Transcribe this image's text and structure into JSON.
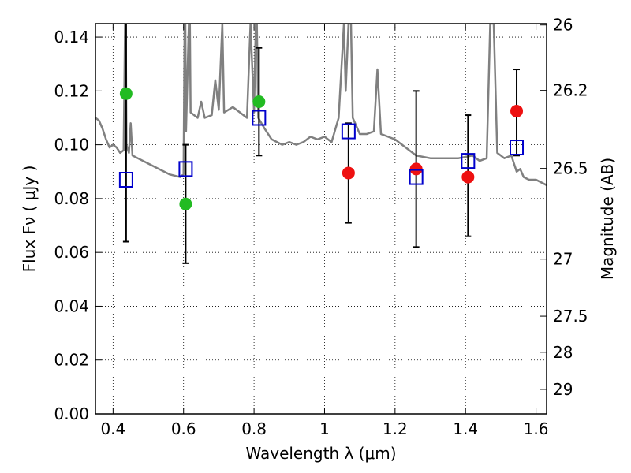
{
  "chart_data": {
    "type": "scatter",
    "xlabel": "Wavelength  λ (μm)",
    "ylabel": "Flux  Fν  ( μJy )",
    "y2label": "Magnitude (AB)",
    "xlim": [
      0.35,
      1.63
    ],
    "ylim": [
      0.0,
      0.145
    ],
    "grid": true,
    "xticks": [
      {
        "value": 0.4,
        "label": "0.4"
      },
      {
        "value": 0.6,
        "label": "0.6"
      },
      {
        "value": 0.8,
        "label": "0.8"
      },
      {
        "value": 1.0,
        "label": "1"
      },
      {
        "value": 1.2,
        "label": "1.2"
      },
      {
        "value": 1.4,
        "label": "1.4"
      },
      {
        "value": 1.6,
        "label": "1.6"
      }
    ],
    "yticks": [
      {
        "value": 0.0,
        "label": "0.00"
      },
      {
        "value": 0.02,
        "label": "0.02"
      },
      {
        "value": 0.04,
        "label": "0.04"
      },
      {
        "value": 0.06,
        "label": "0.06"
      },
      {
        "value": 0.08,
        "label": "0.08"
      },
      {
        "value": 0.1,
        "label": "0.10"
      },
      {
        "value": 0.12,
        "label": "0.12"
      },
      {
        "value": 0.14,
        "label": "0.14"
      }
    ],
    "y2ticks": [
      {
        "flux": 0.1445,
        "label": "26"
      },
      {
        "flux": 0.1202,
        "label": "26.2"
      },
      {
        "flux": 0.0912,
        "label": "26.5"
      },
      {
        "flux": 0.0575,
        "label": "27"
      },
      {
        "flux": 0.0363,
        "label": "27.5"
      },
      {
        "flux": 0.0229,
        "label": "28"
      },
      {
        "flux": 0.0091,
        "label": "29"
      }
    ],
    "series": [
      {
        "kind": "observed_errorbar",
        "color": "#000000",
        "points": [
          {
            "x": 0.437,
            "y": 0.087,
            "ylow": 0.064,
            "yhigh": 0.145
          },
          {
            "x": 0.606,
            "y": 0.091,
            "ylow": 0.056,
            "yhigh": 0.1
          },
          {
            "x": 0.814,
            "y": 0.11,
            "ylow": 0.096,
            "yhigh": 0.136
          },
          {
            "x": 1.068,
            "y": 0.105,
            "ylow": 0.071,
            "yhigh": 0.108
          },
          {
            "x": 1.26,
            "y": 0.088,
            "ylow": 0.062,
            "yhigh": 0.12
          },
          {
            "x": 1.407,
            "y": 0.094,
            "ylow": 0.066,
            "yhigh": 0.111
          },
          {
            "x": 1.545,
            "y": 0.099,
            "ylow": 0.096,
            "yhigh": 0.128
          }
        ]
      },
      {
        "kind": "model_squares",
        "color": "#0000cc",
        "points": [
          {
            "x": 0.437,
            "y": 0.087
          },
          {
            "x": 0.606,
            "y": 0.091
          },
          {
            "x": 0.814,
            "y": 0.11
          },
          {
            "x": 1.068,
            "y": 0.105
          },
          {
            "x": 1.26,
            "y": 0.088
          },
          {
            "x": 1.407,
            "y": 0.094
          },
          {
            "x": 1.545,
            "y": 0.099
          }
        ]
      },
      {
        "kind": "green_circles",
        "color": "#22bb22",
        "points": [
          {
            "x": 0.437,
            "y": 0.119
          },
          {
            "x": 0.606,
            "y": 0.078
          },
          {
            "x": 0.814,
            "y": 0.116
          }
        ]
      },
      {
        "kind": "red_circles",
        "color": "#ee1111",
        "points": [
          {
            "x": 1.068,
            "y": 0.0895
          },
          {
            "x": 1.26,
            "y": 0.091
          },
          {
            "x": 1.407,
            "y": 0.088
          },
          {
            "x": 1.545,
            "y": 0.1125
          }
        ]
      },
      {
        "kind": "model_spectrum",
        "color": "#808080",
        "points": [
          [
            0.35,
            0.11
          ],
          [
            0.36,
            0.109
          ],
          [
            0.37,
            0.106
          ],
          [
            0.38,
            0.102
          ],
          [
            0.39,
            0.099
          ],
          [
            0.4,
            0.1
          ],
          [
            0.41,
            0.099
          ],
          [
            0.42,
            0.097
          ],
          [
            0.43,
            0.098
          ],
          [
            0.434,
            0.145
          ],
          [
            0.436,
            0.145
          ],
          [
            0.438,
            0.1
          ],
          [
            0.445,
            0.097
          ],
          [
            0.45,
            0.108
          ],
          [
            0.455,
            0.096
          ],
          [
            0.47,
            0.095
          ],
          [
            0.5,
            0.093
          ],
          [
            0.53,
            0.091
          ],
          [
            0.56,
            0.089
          ],
          [
            0.59,
            0.088
          ],
          [
            0.6,
            0.089
          ],
          [
            0.603,
            0.145
          ],
          [
            0.605,
            0.145
          ],
          [
            0.607,
            0.105
          ],
          [
            0.61,
            0.12
          ],
          [
            0.615,
            0.145
          ],
          [
            0.618,
            0.145
          ],
          [
            0.62,
            0.112
          ],
          [
            0.64,
            0.11
          ],
          [
            0.65,
            0.116
          ],
          [
            0.66,
            0.11
          ],
          [
            0.68,
            0.111
          ],
          [
            0.69,
            0.124
          ],
          [
            0.7,
            0.113
          ],
          [
            0.71,
            0.145
          ],
          [
            0.715,
            0.112
          ],
          [
            0.74,
            0.114
          ],
          [
            0.76,
            0.112
          ],
          [
            0.78,
            0.11
          ],
          [
            0.79,
            0.145
          ],
          [
            0.8,
            0.112
          ],
          [
            0.805,
            0.145
          ],
          [
            0.808,
            0.145
          ],
          [
            0.812,
            0.11
          ],
          [
            0.83,
            0.106
          ],
          [
            0.85,
            0.102
          ],
          [
            0.88,
            0.1
          ],
          [
            0.9,
            0.101
          ],
          [
            0.92,
            0.1
          ],
          [
            0.94,
            0.101
          ],
          [
            0.96,
            0.103
          ],
          [
            0.98,
            0.102
          ],
          [
            1.0,
            0.103
          ],
          [
            1.02,
            0.101
          ],
          [
            1.04,
            0.11
          ],
          [
            1.055,
            0.145
          ],
          [
            1.06,
            0.12
          ],
          [
            1.068,
            0.145
          ],
          [
            1.075,
            0.145
          ],
          [
            1.08,
            0.11
          ],
          [
            1.1,
            0.104
          ],
          [
            1.12,
            0.104
          ],
          [
            1.14,
            0.105
          ],
          [
            1.15,
            0.128
          ],
          [
            1.16,
            0.104
          ],
          [
            1.18,
            0.103
          ],
          [
            1.2,
            0.102
          ],
          [
            1.22,
            0.1
          ],
          [
            1.26,
            0.096
          ],
          [
            1.3,
            0.095
          ],
          [
            1.34,
            0.095
          ],
          [
            1.38,
            0.095
          ],
          [
            1.42,
            0.096
          ],
          [
            1.44,
            0.094
          ],
          [
            1.46,
            0.095
          ],
          [
            1.47,
            0.145
          ],
          [
            1.48,
            0.145
          ],
          [
            1.49,
            0.097
          ],
          [
            1.51,
            0.095
          ],
          [
            1.53,
            0.096
          ],
          [
            1.545,
            0.09
          ],
          [
            1.555,
            0.091
          ],
          [
            1.565,
            0.088
          ],
          [
            1.58,
            0.087
          ],
          [
            1.6,
            0.087
          ],
          [
            1.63,
            0.085
          ]
        ]
      }
    ]
  }
}
